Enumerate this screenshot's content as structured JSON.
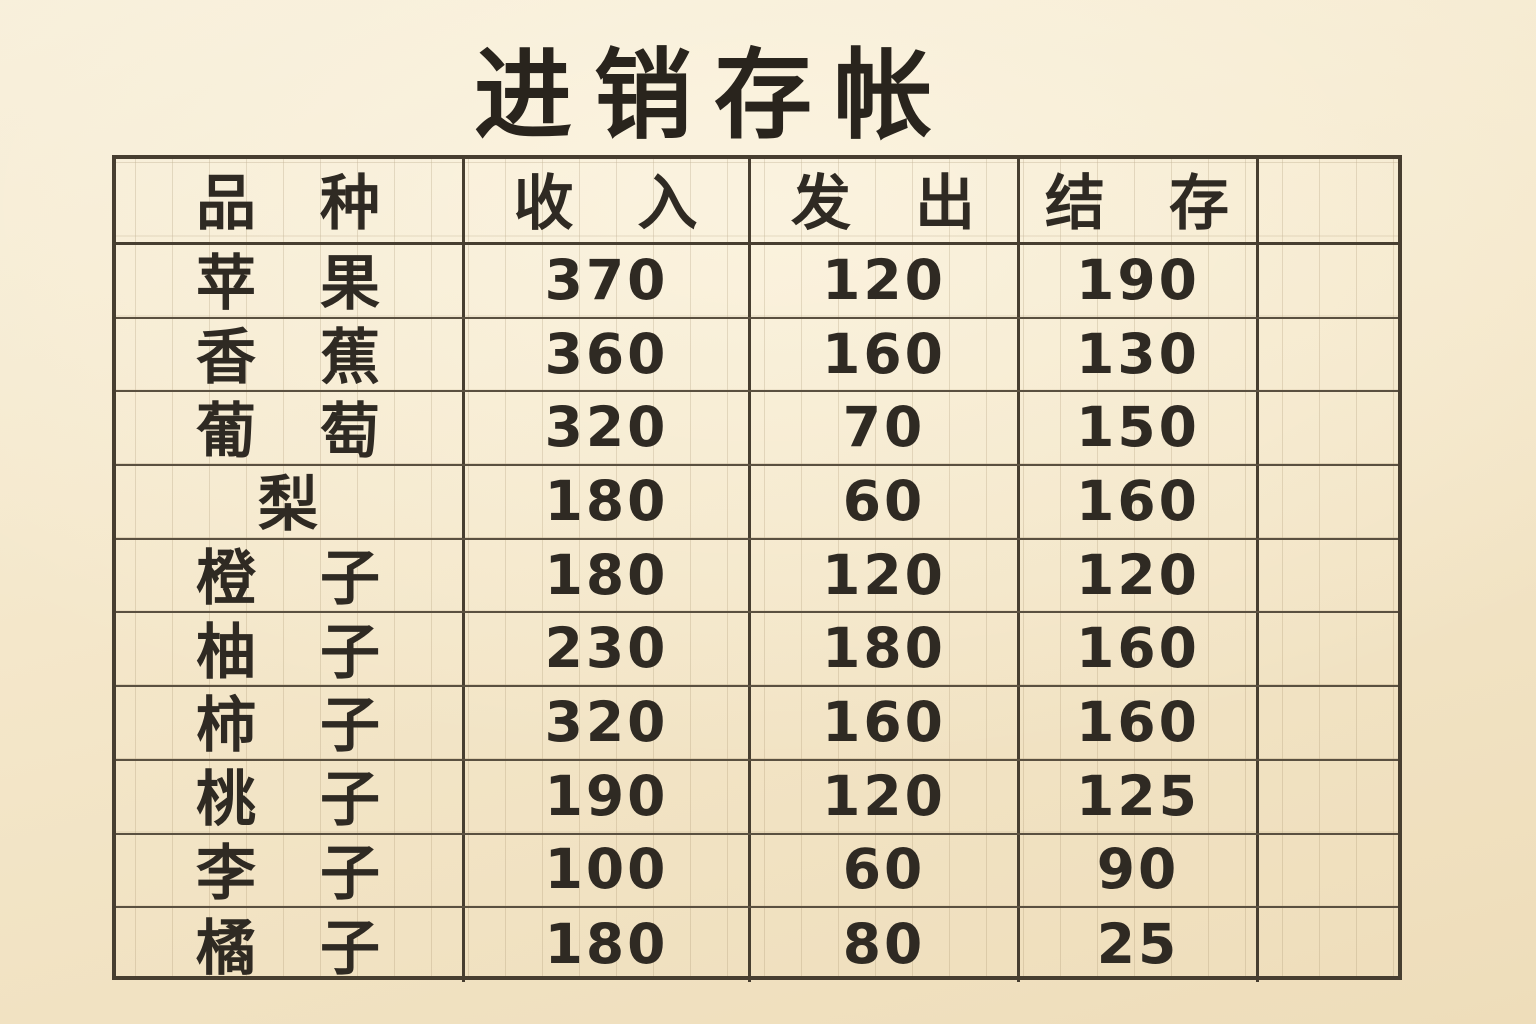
{
  "title": "进销存帐",
  "colors": {
    "paper": "#f4e7ca",
    "ink": "#2f2a23",
    "grid_line": "#473e30",
    "faint_line": "#96805c"
  },
  "table": {
    "headers": [
      "品　种",
      "收　入",
      "发　出",
      "结　存",
      ""
    ],
    "rows": [
      [
        "苹　果",
        "370",
        "120",
        "190",
        ""
      ],
      [
        "香　蕉",
        "360",
        "160",
        "130",
        ""
      ],
      [
        "葡　萄",
        "320",
        "70",
        "150",
        ""
      ],
      [
        "梨",
        "180",
        "60",
        "160",
        ""
      ],
      [
        "橙　子",
        "180",
        "120",
        "120",
        ""
      ],
      [
        "柚　子",
        "230",
        "180",
        "160",
        ""
      ],
      [
        "柿　子",
        "320",
        "160",
        "160",
        ""
      ],
      [
        "桃　子",
        "190",
        "120",
        "125",
        ""
      ],
      [
        "李　子",
        "100",
        "60",
        "90",
        ""
      ],
      [
        "橘　子",
        "180",
        "80",
        "25",
        ""
      ]
    ]
  }
}
